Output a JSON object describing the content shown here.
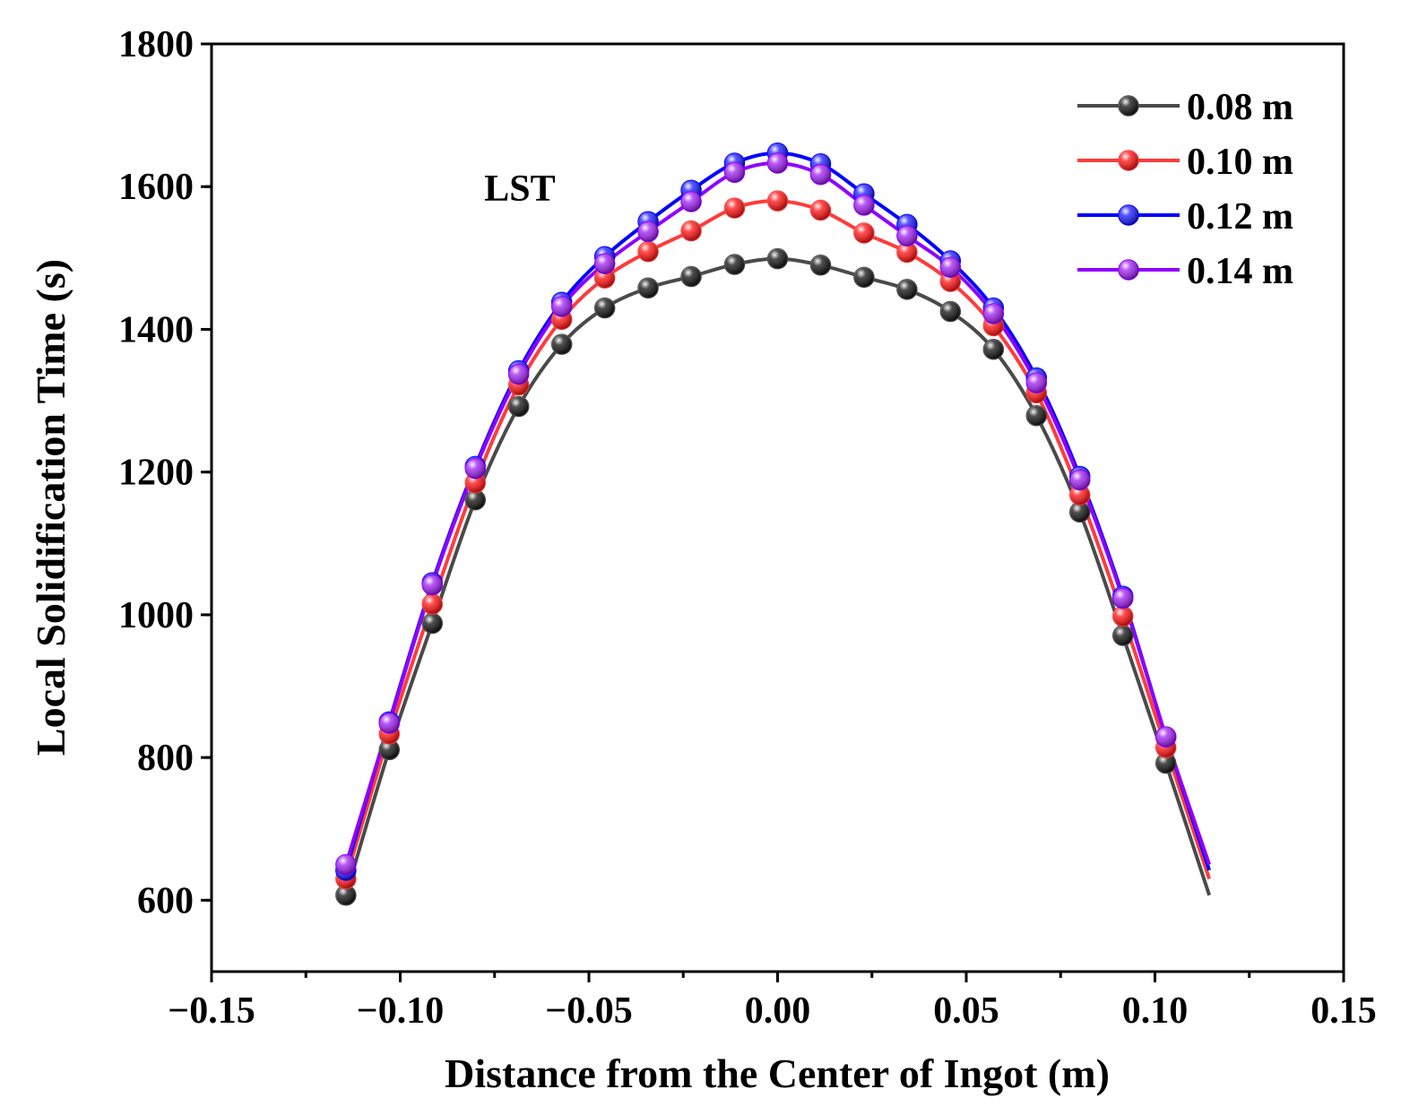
{
  "chart_data": {
    "type": "line",
    "title": "",
    "annotation": "LST",
    "xlabel": "Distance from the Center of Ingot (m)",
    "ylabel": "Local Solidification Time (s)",
    "xlim": [
      -0.15,
      0.15
    ],
    "ylim": [
      500,
      1800
    ],
    "xticks": [
      -0.15,
      -0.1,
      -0.05,
      0.0,
      0.05,
      0.1,
      0.15
    ],
    "xtick_labels": [
      "−0.15",
      "−0.10",
      "−0.05",
      "0.00",
      "0.05",
      "0.10",
      "0.15"
    ],
    "yticks": [
      600,
      800,
      1000,
      1200,
      1400,
      1600,
      1800
    ],
    "ytick_labels": [
      "600",
      "800",
      "1000",
      "1200",
      "1400",
      "1600",
      "1800"
    ],
    "grid": false,
    "legend_position": "top-right",
    "x": [
      -0.1144,
      -0.1029,
      -0.0915,
      -0.0801,
      -0.0686,
      -0.0572,
      -0.0458,
      -0.0343,
      -0.0229,
      -0.0114,
      0.0,
      0.0114,
      0.0229,
      0.0343,
      0.0458,
      0.0572,
      0.0686,
      0.0801,
      0.0915,
      0.1029,
      0.1144
    ],
    "series": [
      {
        "name": "0.08 m",
        "color": "#4a4a4a",
        "marker_color": "#111111",
        "values": [
          607,
          811,
          988,
          1161,
          1292,
          1379,
          1430,
          1458,
          1474,
          1491,
          1499,
          1490,
          1473,
          1456,
          1425,
          1372,
          1279,
          1144,
          971,
          792,
          607
        ]
      },
      {
        "name": "0.10 m",
        "color": "#ff3b3b",
        "marker_color": "#ff1010",
        "values": [
          630,
          833,
          1015,
          1185,
          1322,
          1414,
          1472,
          1509,
          1538,
          1570,
          1580,
          1567,
          1535,
          1508,
          1467,
          1405,
          1311,
          1168,
          998,
          814,
          630
        ]
      },
      {
        "name": "0.12 m",
        "color": "#0000ff",
        "marker_color": "#1a1aff",
        "values": [
          642,
          850,
          1045,
          1208,
          1342,
          1438,
          1502,
          1551,
          1595,
          1633,
          1647,
          1632,
          1590,
          1547,
          1496,
          1430,
          1332,
          1194,
          1026,
          829,
          642
        ]
      },
      {
        "name": "0.14 m",
        "color": "#8f00ff",
        "marker_color": "#a020f0",
        "values": [
          650,
          848,
          1042,
          1205,
          1337,
          1432,
          1492,
          1537,
          1579,
          1620,
          1633,
          1617,
          1574,
          1531,
          1487,
          1422,
          1325,
          1189,
          1023,
          829,
          650
        ]
      }
    ]
  }
}
